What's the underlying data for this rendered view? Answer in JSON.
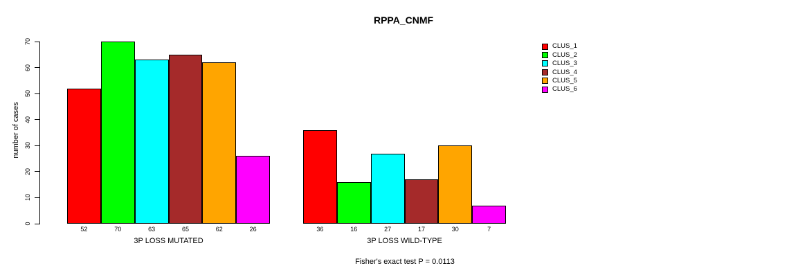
{
  "chart_data": {
    "type": "bar",
    "title": "RPPA_CNMF",
    "ylabel": "number of cases",
    "xlabel": "",
    "ylim": [
      0,
      70
    ],
    "yticks": [
      0,
      10,
      20,
      30,
      40,
      50,
      60,
      70
    ],
    "grid": false,
    "legend_position": "top-right",
    "categories": [
      "3P LOSS MUTATED",
      "3P LOSS WILD-TYPE"
    ],
    "series": [
      {
        "name": "CLUS_1",
        "color": "#FF0000",
        "values": [
          52,
          36
        ]
      },
      {
        "name": "CLUS_2",
        "color": "#00FF00",
        "values": [
          70,
          16
        ]
      },
      {
        "name": "CLUS_3",
        "color": "#00FFFF",
        "values": [
          63,
          27
        ]
      },
      {
        "name": "CLUS_4",
        "color": "#A52A2A",
        "values": [
          65,
          17
        ]
      },
      {
        "name": "CLUS_5",
        "color": "#FFA500",
        "values": [
          62,
          30
        ]
      },
      {
        "name": "CLUS_6",
        "color": "#FF00FF",
        "values": [
          26,
          7
        ]
      }
    ],
    "bar_value_labels": [
      [
        52,
        70,
        63,
        65,
        62,
        26
      ],
      [
        36,
        16,
        27,
        17,
        30,
        7
      ]
    ],
    "annotation": "Fisher's exact test P = 0.0113"
  }
}
